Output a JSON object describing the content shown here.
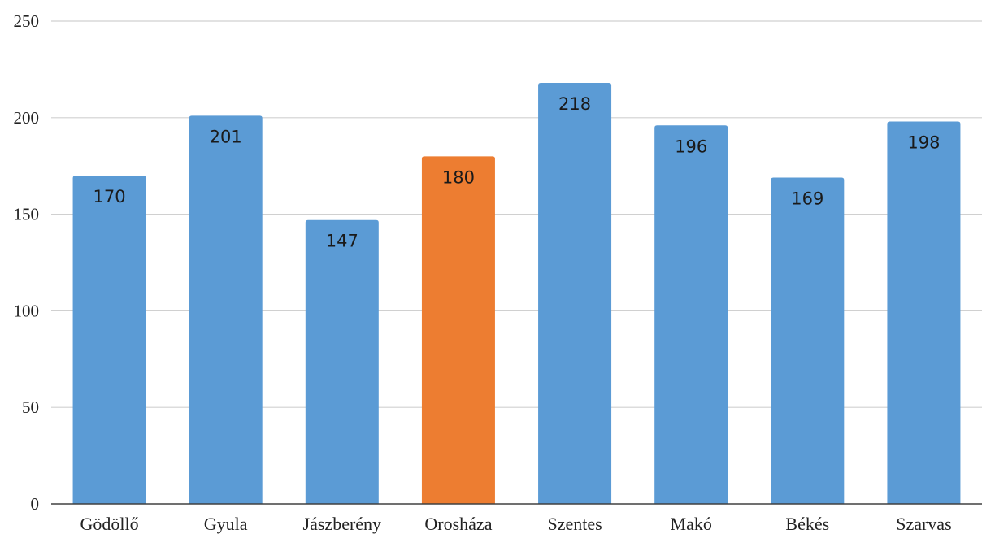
{
  "chart_data": {
    "type": "bar",
    "categories": [
      "Gödöllő",
      "Gyula",
      "Jászberény",
      "Orosháza",
      "Szentes",
      "Makó",
      "Békés",
      "Szarvas"
    ],
    "values": [
      170,
      201,
      147,
      180,
      218,
      196,
      169,
      198
    ],
    "data_labels": [
      "170",
      "201",
      "147",
      "180",
      "218",
      "196",
      "169",
      "198"
    ],
    "highlight_index": 3,
    "colors": {
      "default": "#5b9bd5",
      "highlight": "#ed7d31"
    },
    "title": "",
    "xlabel": "",
    "ylabel": "",
    "ylim": [
      0,
      250
    ],
    "yticks": [
      0,
      50,
      100,
      150,
      200,
      250
    ],
    "grid": true,
    "legend": "none"
  }
}
